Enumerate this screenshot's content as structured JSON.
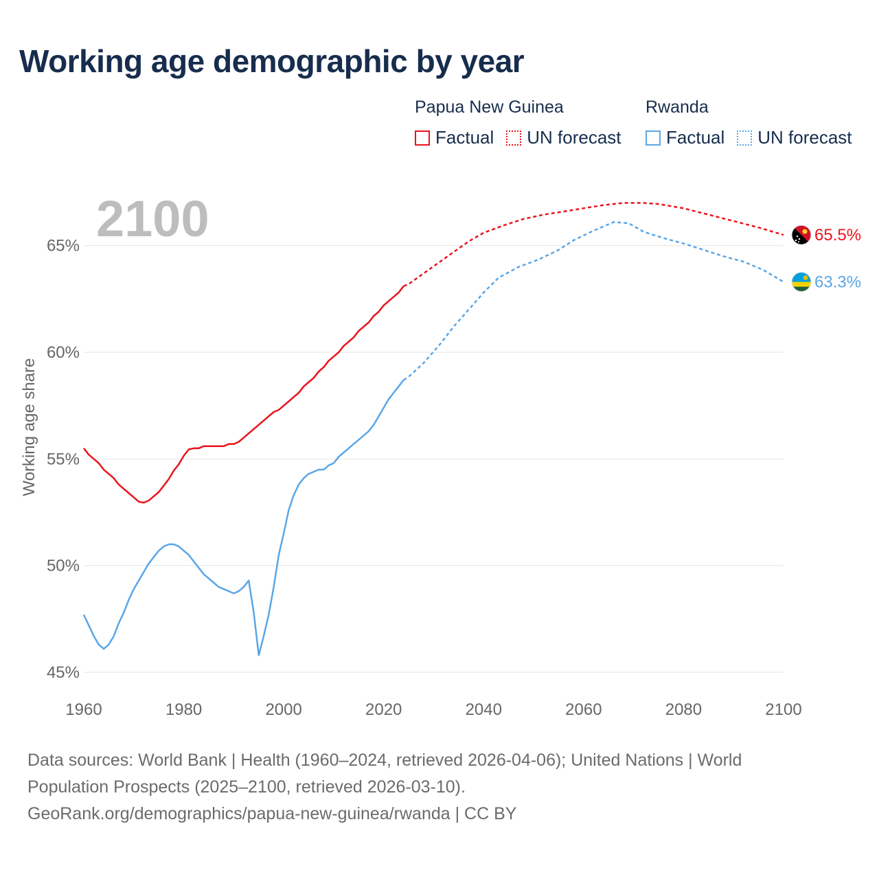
{
  "title": "Working age demographic by year",
  "legend": {
    "groups": [
      {
        "country": "Papua New Guinea",
        "factual_label": "Factual",
        "forecast_label": "UN forecast",
        "color": "#e8141c"
      },
      {
        "country": "Rwanda",
        "factual_label": "Factual",
        "forecast_label": "UN forecast",
        "color": "#5aa6e6"
      }
    ]
  },
  "year_display": "2100",
  "footer": {
    "line1": "Data sources: World Bank | Health (1960–2024, retrieved 2026-04-06); United Nations | World",
    "line2": "Population Prospects (2025–2100, retrieved 2026-03-10).",
    "line3": "GeoRank.org/demographics/papua-new-guinea/rwanda | CC BY"
  },
  "chart_data": {
    "type": "line",
    "title": "Working age demographic by year",
    "xlabel": "",
    "ylabel": "Working age share",
    "xlim": [
      1960,
      2100
    ],
    "ylim": [
      45,
      67.5
    ],
    "x_ticks": [
      1960,
      1980,
      2000,
      2020,
      2040,
      2060,
      2080,
      2100
    ],
    "y_ticks": [
      45,
      50,
      55,
      60,
      65
    ],
    "y_tick_labels": [
      "45%",
      "50%",
      "55%",
      "60%",
      "65%"
    ],
    "grid": true,
    "forecast_start": 2024,
    "series": [
      {
        "name": "Papua New Guinea",
        "color": "#e8141c",
        "end_label": "65.5%",
        "points": [
          [
            1960,
            55.5
          ],
          [
            1961,
            55.2
          ],
          [
            1962,
            55.0
          ],
          [
            1963,
            54.8
          ],
          [
            1964,
            54.5
          ],
          [
            1965,
            54.3
          ],
          [
            1966,
            54.1
          ],
          [
            1967,
            53.8
          ],
          [
            1968,
            53.6
          ],
          [
            1969,
            53.4
          ],
          [
            1970,
            53.2
          ],
          [
            1971,
            53.0
          ],
          [
            1972,
            52.95
          ],
          [
            1973,
            53.05
          ],
          [
            1974,
            53.25
          ],
          [
            1975,
            53.45
          ],
          [
            1976,
            53.75
          ],
          [
            1977,
            54.05
          ],
          [
            1978,
            54.45
          ],
          [
            1979,
            54.75
          ],
          [
            1980,
            55.15
          ],
          [
            1981,
            55.45
          ],
          [
            1982,
            55.5
          ],
          [
            1983,
            55.5
          ],
          [
            1984,
            55.6
          ],
          [
            1985,
            55.6
          ],
          [
            1986,
            55.6
          ],
          [
            1987,
            55.6
          ],
          [
            1988,
            55.6
          ],
          [
            1989,
            55.7
          ],
          [
            1990,
            55.7
          ],
          [
            1991,
            55.8
          ],
          [
            1992,
            56.0
          ],
          [
            1993,
            56.2
          ],
          [
            1994,
            56.4
          ],
          [
            1995,
            56.6
          ],
          [
            1996,
            56.8
          ],
          [
            1997,
            57.0
          ],
          [
            1998,
            57.2
          ],
          [
            1999,
            57.3
          ],
          [
            2000,
            57.5
          ],
          [
            2001,
            57.7
          ],
          [
            2002,
            57.9
          ],
          [
            2003,
            58.1
          ],
          [
            2004,
            58.4
          ],
          [
            2005,
            58.6
          ],
          [
            2006,
            58.8
          ],
          [
            2007,
            59.1
          ],
          [
            2008,
            59.3
          ],
          [
            2009,
            59.6
          ],
          [
            2010,
            59.8
          ],
          [
            2011,
            60.0
          ],
          [
            2012,
            60.3
          ],
          [
            2013,
            60.5
          ],
          [
            2014,
            60.7
          ],
          [
            2015,
            61.0
          ],
          [
            2016,
            61.2
          ],
          [
            2017,
            61.4
          ],
          [
            2018,
            61.7
          ],
          [
            2019,
            61.9
          ],
          [
            2020,
            62.2
          ],
          [
            2021,
            62.4
          ],
          [
            2022,
            62.6
          ],
          [
            2023,
            62.8
          ],
          [
            2024,
            63.1
          ],
          [
            2025,
            63.2
          ],
          [
            2028,
            63.7
          ],
          [
            2031,
            64.2
          ],
          [
            2034,
            64.7
          ],
          [
            2037,
            65.2
          ],
          [
            2040,
            65.6
          ],
          [
            2044,
            65.95
          ],
          [
            2048,
            66.25
          ],
          [
            2052,
            66.45
          ],
          [
            2056,
            66.6
          ],
          [
            2060,
            66.75
          ],
          [
            2064,
            66.9
          ],
          [
            2068,
            67.0
          ],
          [
            2072,
            67.0
          ],
          [
            2075,
            66.95
          ],
          [
            2080,
            66.75
          ],
          [
            2085,
            66.45
          ],
          [
            2090,
            66.15
          ],
          [
            2095,
            65.85
          ],
          [
            2100,
            65.5
          ]
        ]
      },
      {
        "name": "Rwanda",
        "color": "#5aa6e6",
        "end_label": "63.3%",
        "points": [
          [
            1960,
            47.7
          ],
          [
            1961,
            47.2
          ],
          [
            1962,
            46.7
          ],
          [
            1963,
            46.3
          ],
          [
            1964,
            46.1
          ],
          [
            1965,
            46.3
          ],
          [
            1966,
            46.7
          ],
          [
            1967,
            47.3
          ],
          [
            1968,
            47.8
          ],
          [
            1969,
            48.4
          ],
          [
            1970,
            48.9
          ],
          [
            1971,
            49.3
          ],
          [
            1972,
            49.7
          ],
          [
            1973,
            50.1
          ],
          [
            1974,
            50.4
          ],
          [
            1975,
            50.7
          ],
          [
            1976,
            50.9
          ],
          [
            1977,
            51.0
          ],
          [
            1978,
            51.0
          ],
          [
            1979,
            50.9
          ],
          [
            1980,
            50.7
          ],
          [
            1981,
            50.5
          ],
          [
            1982,
            50.2
          ],
          [
            1983,
            49.9
          ],
          [
            1984,
            49.6
          ],
          [
            1985,
            49.4
          ],
          [
            1986,
            49.2
          ],
          [
            1987,
            49.0
          ],
          [
            1988,
            48.9
          ],
          [
            1989,
            48.8
          ],
          [
            1990,
            48.7
          ],
          [
            1991,
            48.8
          ],
          [
            1992,
            49.0
          ],
          [
            1993,
            49.3
          ],
          [
            1994,
            47.8
          ],
          [
            1995,
            45.8
          ],
          [
            1996,
            46.7
          ],
          [
            1997,
            47.7
          ],
          [
            1998,
            49.0
          ],
          [
            1999,
            50.5
          ],
          [
            2000,
            51.5
          ],
          [
            2001,
            52.6
          ],
          [
            2002,
            53.3
          ],
          [
            2003,
            53.8
          ],
          [
            2004,
            54.1
          ],
          [
            2005,
            54.3
          ],
          [
            2006,
            54.4
          ],
          [
            2007,
            54.5
          ],
          [
            2008,
            54.5
          ],
          [
            2009,
            54.7
          ],
          [
            2010,
            54.8
          ],
          [
            2011,
            55.1
          ],
          [
            2012,
            55.3
          ],
          [
            2013,
            55.5
          ],
          [
            2014,
            55.7
          ],
          [
            2015,
            55.9
          ],
          [
            2016,
            56.1
          ],
          [
            2017,
            56.3
          ],
          [
            2018,
            56.6
          ],
          [
            2019,
            57.0
          ],
          [
            2020,
            57.4
          ],
          [
            2021,
            57.8
          ],
          [
            2022,
            58.1
          ],
          [
            2023,
            58.4
          ],
          [
            2024,
            58.7
          ],
          [
            2025,
            58.85
          ],
          [
            2028,
            59.5
          ],
          [
            2031,
            60.3
          ],
          [
            2034,
            61.2
          ],
          [
            2037,
            62.0
          ],
          [
            2040,
            62.8
          ],
          [
            2043,
            63.5
          ],
          [
            2047,
            64.0
          ],
          [
            2051,
            64.35
          ],
          [
            2055,
            64.8
          ],
          [
            2058,
            65.25
          ],
          [
            2062,
            65.7
          ],
          [
            2066,
            66.1
          ],
          [
            2069,
            66.05
          ],
          [
            2072,
            65.65
          ],
          [
            2076,
            65.35
          ],
          [
            2080,
            65.1
          ],
          [
            2084,
            64.8
          ],
          [
            2088,
            64.5
          ],
          [
            2092,
            64.25
          ],
          [
            2096,
            63.85
          ],
          [
            2100,
            63.3
          ]
        ]
      }
    ]
  }
}
